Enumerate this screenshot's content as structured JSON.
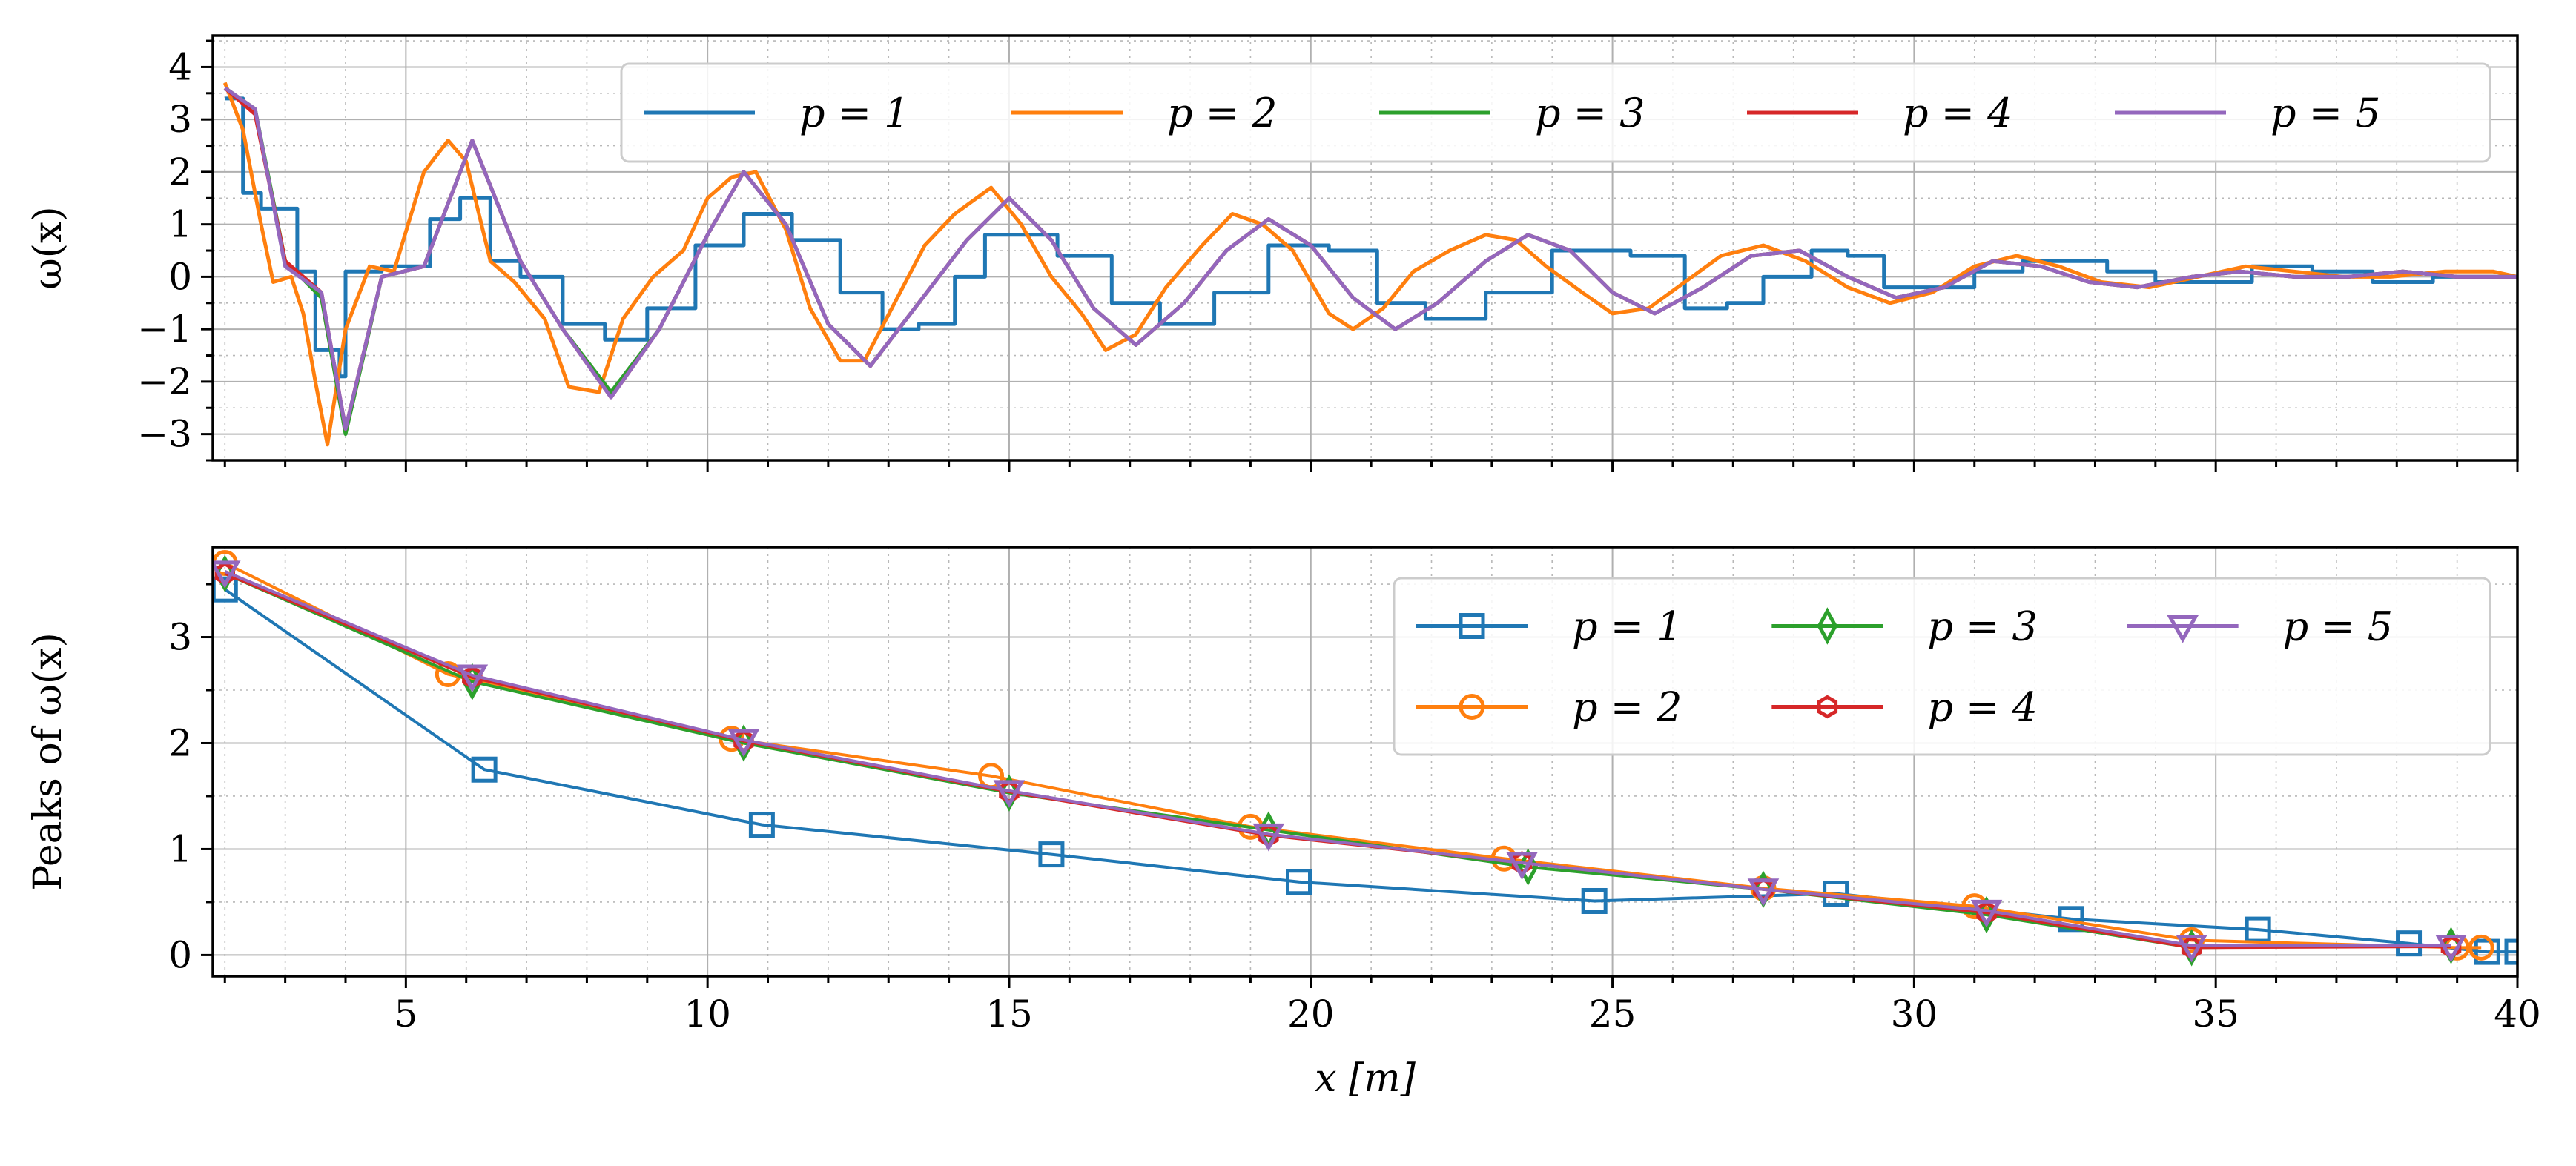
{
  "chart_data": [
    {
      "type": "line",
      "ylabel": "ω(x)",
      "xlabel": "",
      "xlim": [
        1.8,
        40
      ],
      "ylim": [
        -3.5,
        4.6
      ],
      "yticks": [
        -3,
        -2,
        -1,
        0,
        1,
        2,
        3,
        4
      ],
      "ytick_labels": [
        "−3",
        "−2",
        "−1",
        "0",
        "1",
        "2",
        "3",
        "4"
      ],
      "grid": true,
      "legend": {
        "location": "top-right",
        "columns": 5
      },
      "series": [
        {
          "name": "p = 1",
          "color": "#1f77b4",
          "stepped": true,
          "x": [
            2.0,
            2.3,
            2.6,
            3.2,
            3.5,
            3.9,
            4.0,
            4.6,
            5.4,
            5.9,
            6.4,
            6.9,
            7.6,
            8.3,
            9.0,
            9.8,
            10.6,
            11.4,
            12.2,
            12.9,
            13.5,
            14.1,
            14.6,
            15.2,
            15.8,
            16.7,
            17.5,
            18.4,
            19.3,
            20.3,
            21.1,
            21.9,
            22.9,
            24.0,
            25.3,
            26.2,
            26.9,
            27.5,
            28.3,
            28.9,
            29.5,
            30.2,
            31.0,
            31.8,
            32.4,
            33.2,
            34.0,
            34.8,
            35.6,
            36.6,
            37.6,
            38.6,
            39.4,
            40.0
          ],
          "y": [
            3.4,
            1.6,
            1.3,
            0.1,
            -1.4,
            -1.9,
            0.1,
            0.2,
            1.1,
            1.5,
            0.3,
            0.0,
            -0.9,
            -1.2,
            -0.6,
            0.6,
            1.2,
            0.7,
            -0.3,
            -1.0,
            -0.9,
            0.0,
            0.8,
            0.8,
            0.4,
            -0.5,
            -0.9,
            -0.3,
            0.6,
            0.5,
            -0.5,
            -0.8,
            -0.3,
            0.5,
            0.4,
            -0.6,
            -0.5,
            0.0,
            0.5,
            0.4,
            -0.2,
            -0.2,
            0.1,
            0.3,
            0.3,
            0.1,
            -0.1,
            -0.1,
            0.2,
            0.1,
            -0.1,
            0.0,
            0.0,
            0.0
          ]
        },
        {
          "name": "p = 2",
          "color": "#ff7f0e",
          "x": [
            2.0,
            2.3,
            2.6,
            2.8,
            3.1,
            3.3,
            3.5,
            3.7,
            4.0,
            4.4,
            4.8,
            5.3,
            5.7,
            6.0,
            6.4,
            6.8,
            7.3,
            7.7,
            8.2,
            8.6,
            9.1,
            9.6,
            10.0,
            10.4,
            10.8,
            11.3,
            11.7,
            12.2,
            12.6,
            13.1,
            13.6,
            14.1,
            14.7,
            15.2,
            15.7,
            16.2,
            16.6,
            17.1,
            17.6,
            18.2,
            18.7,
            19.2,
            19.7,
            20.3,
            20.7,
            21.2,
            21.7,
            22.3,
            22.9,
            23.4,
            23.9,
            24.5,
            25.0,
            25.6,
            26.2,
            26.8,
            27.5,
            28.2,
            28.9,
            29.6,
            30.3,
            31.0,
            31.7,
            32.4,
            33.1,
            33.9,
            34.7,
            35.5,
            36.3,
            37.1,
            37.9,
            38.8,
            39.6,
            40.0
          ],
          "y": [
            3.7,
            2.8,
            1.0,
            -0.1,
            0.0,
            -0.7,
            -2.0,
            -3.2,
            -1.0,
            0.2,
            0.1,
            2.0,
            2.6,
            2.2,
            0.3,
            -0.1,
            -0.8,
            -2.1,
            -2.2,
            -0.8,
            0.0,
            0.5,
            1.5,
            1.9,
            2.0,
            0.9,
            -0.6,
            -1.6,
            -1.6,
            -0.5,
            0.6,
            1.2,
            1.7,
            1.0,
            0.0,
            -0.7,
            -1.4,
            -1.1,
            -0.2,
            0.6,
            1.2,
            1.0,
            0.5,
            -0.7,
            -1.0,
            -0.6,
            0.1,
            0.5,
            0.8,
            0.7,
            0.2,
            -0.3,
            -0.7,
            -0.6,
            -0.1,
            0.4,
            0.6,
            0.3,
            -0.2,
            -0.5,
            -0.3,
            0.2,
            0.4,
            0.2,
            -0.1,
            -0.2,
            0.0,
            0.2,
            0.1,
            0.0,
            0.0,
            0.1,
            0.1,
            0.0
          ]
        },
        {
          "name": "p = 3",
          "color": "#2ca02c",
          "x": [
            2.0,
            2.5,
            3.0,
            3.6,
            4.0,
            4.6,
            5.3,
            6.1,
            6.9,
            7.6,
            8.4,
            9.2,
            10.0,
            10.6,
            11.3,
            12.0,
            12.7,
            13.5,
            14.3,
            15.0,
            15.7,
            16.4,
            17.1,
            17.9,
            18.6,
            19.3,
            20.0,
            20.7,
            21.4,
            22.1,
            22.9,
            23.6,
            24.3,
            25.0,
            25.7,
            26.5,
            27.3,
            28.1,
            28.9,
            29.7,
            30.5,
            31.3,
            32.1,
            32.9,
            33.7,
            34.6,
            35.4,
            36.3,
            37.2,
            38.1,
            39.0,
            40.0
          ],
          "y": [
            3.6,
            3.2,
            0.3,
            -0.4,
            -3.0,
            0.0,
            0.2,
            2.6,
            0.3,
            -1.0,
            -2.2,
            -1.0,
            0.8,
            2.0,
            1.0,
            -0.9,
            -1.7,
            -0.5,
            0.7,
            1.5,
            0.7,
            -0.6,
            -1.3,
            -0.5,
            0.5,
            1.1,
            0.6,
            -0.4,
            -1.0,
            -0.5,
            0.3,
            0.8,
            0.5,
            -0.3,
            -0.7,
            -0.2,
            0.4,
            0.5,
            0.0,
            -0.4,
            -0.2,
            0.3,
            0.2,
            -0.1,
            -0.2,
            0.0,
            0.1,
            0.0,
            0.0,
            0.1,
            0.0,
            0.0
          ]
        },
        {
          "name": "p = 4",
          "color": "#d62728",
          "x": [
            2.0,
            2.5,
            3.0,
            3.6,
            4.0,
            4.6,
            5.3,
            6.1,
            6.9,
            7.6,
            8.4,
            9.2,
            10.0,
            10.6,
            11.3,
            12.0,
            12.7,
            13.5,
            14.3,
            15.0,
            15.7,
            16.4,
            17.1,
            17.9,
            18.6,
            19.3,
            20.0,
            20.7,
            21.4,
            22.1,
            22.9,
            23.6,
            24.3,
            25.0,
            25.7,
            26.5,
            27.3,
            28.1,
            28.9,
            29.7,
            30.5,
            31.3,
            32.1,
            32.9,
            33.7,
            34.6,
            35.4,
            36.3,
            37.2,
            38.1,
            39.0,
            40.0
          ],
          "y": [
            3.6,
            3.1,
            0.3,
            -0.3,
            -2.9,
            0.0,
            0.2,
            2.6,
            0.3,
            -1.0,
            -2.3,
            -1.0,
            0.8,
            2.0,
            1.0,
            -0.9,
            -1.7,
            -0.5,
            0.7,
            1.5,
            0.7,
            -0.6,
            -1.3,
            -0.5,
            0.5,
            1.1,
            0.6,
            -0.4,
            -1.0,
            -0.5,
            0.3,
            0.8,
            0.5,
            -0.3,
            -0.7,
            -0.2,
            0.4,
            0.5,
            0.0,
            -0.4,
            -0.2,
            0.3,
            0.2,
            -0.1,
            -0.2,
            0.0,
            0.1,
            0.0,
            0.0,
            0.1,
            0.0,
            0.0
          ]
        },
        {
          "name": "p = 5",
          "color": "#9467bd",
          "x": [
            2.0,
            2.5,
            3.0,
            3.6,
            4.0,
            4.6,
            5.3,
            6.1,
            6.9,
            7.6,
            8.4,
            9.2,
            10.0,
            10.6,
            11.3,
            12.0,
            12.7,
            13.5,
            14.3,
            15.0,
            15.7,
            16.4,
            17.1,
            17.9,
            18.6,
            19.3,
            20.0,
            20.7,
            21.4,
            22.1,
            22.9,
            23.6,
            24.3,
            25.0,
            25.7,
            26.5,
            27.3,
            28.1,
            28.9,
            29.7,
            30.5,
            31.3,
            32.1,
            32.9,
            33.7,
            34.6,
            35.4,
            36.3,
            37.2,
            38.1,
            39.0,
            40.0
          ],
          "y": [
            3.6,
            3.2,
            0.2,
            -0.3,
            -2.9,
            0.0,
            0.2,
            2.6,
            0.3,
            -1.0,
            -2.3,
            -1.0,
            0.8,
            2.0,
            1.0,
            -0.9,
            -1.7,
            -0.5,
            0.7,
            1.5,
            0.7,
            -0.6,
            -1.3,
            -0.5,
            0.5,
            1.1,
            0.6,
            -0.4,
            -1.0,
            -0.5,
            0.3,
            0.8,
            0.5,
            -0.3,
            -0.7,
            -0.2,
            0.4,
            0.5,
            0.0,
            -0.4,
            -0.2,
            0.3,
            0.2,
            -0.1,
            -0.2,
            0.0,
            0.1,
            0.0,
            0.0,
            0.1,
            0.0,
            0.0
          ]
        }
      ]
    },
    {
      "type": "line",
      "ylabel": "Peaks of ω(x)",
      "xlabel": "x [m]",
      "xlim": [
        1.8,
        40
      ],
      "ylim": [
        -0.2,
        3.85
      ],
      "xticks": [
        5,
        10,
        15,
        20,
        25,
        30,
        35,
        40
      ],
      "xtick_labels": [
        "5",
        "10",
        "15",
        "20",
        "25",
        "30",
        "35",
        "40"
      ],
      "yticks": [
        0,
        1,
        2,
        3
      ],
      "ytick_labels": [
        "0",
        "1",
        "2",
        "3"
      ],
      "grid": true,
      "legend": {
        "location": "top-right",
        "columns": 3
      },
      "series": [
        {
          "name": "p = 1",
          "color": "#1f77b4",
          "marker": "square",
          "x": [
            2.0,
            6.3,
            10.9,
            15.7,
            19.8,
            24.7,
            28.7,
            32.6,
            35.7,
            38.2,
            39.5,
            40.0
          ],
          "y": [
            3.45,
            1.75,
            1.23,
            0.95,
            0.69,
            0.51,
            0.58,
            0.34,
            0.24,
            0.11,
            0.03,
            0.03
          ]
        },
        {
          "name": "p = 2",
          "color": "#ff7f0e",
          "marker": "circle",
          "x": [
            2.0,
            5.7,
            10.4,
            14.7,
            19.0,
            23.2,
            27.5,
            31.0,
            34.6,
            39.0,
            39.4
          ],
          "y": [
            3.7,
            2.65,
            2.04,
            1.69,
            1.21,
            0.91,
            0.63,
            0.46,
            0.14,
            0.07,
            0.07
          ]
        },
        {
          "name": "p = 3",
          "color": "#2ca02c",
          "marker": "thin_diamond",
          "x": [
            2.0,
            6.1,
            10.6,
            15.0,
            19.3,
            23.6,
            27.5,
            31.2,
            34.6,
            38.9
          ],
          "y": [
            3.6,
            2.58,
            2.0,
            1.53,
            1.18,
            0.83,
            0.62,
            0.38,
            0.07,
            0.09
          ]
        },
        {
          "name": "p = 4",
          "color": "#d62728",
          "marker": "hexagon",
          "x": [
            2.0,
            6.1,
            10.6,
            15.0,
            19.3,
            23.5,
            27.5,
            31.2,
            34.6,
            38.9
          ],
          "y": [
            3.6,
            2.62,
            2.02,
            1.54,
            1.13,
            0.87,
            0.62,
            0.4,
            0.07,
            0.08
          ]
        },
        {
          "name": "p = 5",
          "color": "#9467bd",
          "marker": "triangle_down",
          "x": [
            2.0,
            6.1,
            10.6,
            15.0,
            19.3,
            23.5,
            27.5,
            31.2,
            34.6,
            38.9
          ],
          "y": [
            3.62,
            2.64,
            2.03,
            1.55,
            1.14,
            0.87,
            0.62,
            0.42,
            0.09,
            0.09
          ]
        }
      ]
    }
  ]
}
